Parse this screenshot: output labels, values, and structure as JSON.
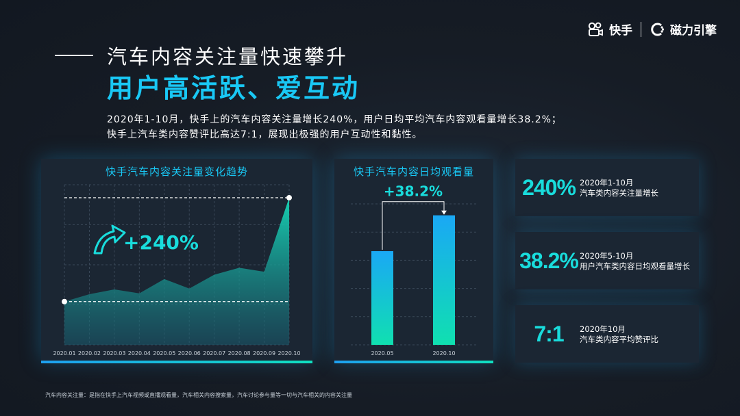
{
  "brand": {
    "kuaishou": "快手",
    "magnetic": "磁力引擎"
  },
  "title": {
    "line1": "汽车内容关注量快速攀升",
    "line2": "用户高活跃、爱互动"
  },
  "description": {
    "line1": "2020年1-10月，快手上的汽车内容关注量增长240%，用户日均平均汽车内容观看量增长38.2%；",
    "line2": "快手上汽车类内容赞评比高达7:1，展现出极强的用户互动性和黏性。"
  },
  "colors": {
    "accent": "#19c8f5",
    "teal": "#19dcdc",
    "panel": "#1b2633",
    "bar_top": "#1aa8f5",
    "bar_bottom": "#10e0b0"
  },
  "chart_data": [
    {
      "type": "area",
      "title": "快手汽车内容关注量变化趋势",
      "categories": [
        "2020.01",
        "2020.02",
        "2020.03",
        "2020.04",
        "2020.05",
        "2020.06",
        "2020.07",
        "2020.08",
        "2020.09",
        "2020.10"
      ],
      "values": [
        100,
        117,
        128,
        119,
        152,
        130,
        162,
        178,
        169,
        340
      ],
      "annotation": "+240%",
      "ylim": [
        0,
        370
      ],
      "grid": true
    },
    {
      "type": "bar",
      "title": "快手汽车内容日均观看量",
      "categories": [
        "2020.05",
        "2020.10"
      ],
      "values": [
        100,
        138.2
      ],
      "annotation": "+38.2%",
      "ylim": [
        0,
        165
      ],
      "grid": true
    }
  ],
  "stats": [
    {
      "value": "240%",
      "line1": "2020年1-10月",
      "line2": "汽车类内容关注量增长"
    },
    {
      "value": "38.2%",
      "line1": "2020年5-10月",
      "line2": "用户汽车类内容日均观看量增长"
    },
    {
      "value": "7:1",
      "line1": "2020年10月",
      "line2": "汽车类内容平均赞评比"
    }
  ],
  "footnote": "汽车内容关注量：是指在快手上汽车视频或直播观看量，汽车相关内容搜索量，汽车讨论参与量等一切与汽车相关的内容关注量"
}
